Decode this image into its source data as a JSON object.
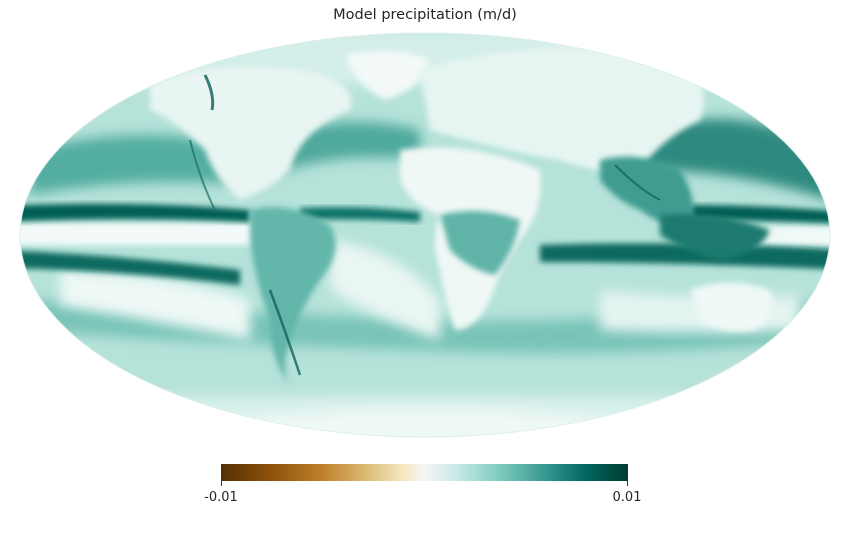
{
  "title": "Model precipitation (m/d)",
  "projection": "mollweide",
  "colormap": {
    "name": "BrBG",
    "colors": [
      "#543005",
      "#8c510a",
      "#bf812d",
      "#dfc27d",
      "#f6e8c3",
      "#f5f5f5",
      "#c7eae5",
      "#80cdc1",
      "#35978f",
      "#01665e",
      "#003c30"
    ]
  },
  "colorbar": {
    "min_label": "-0.01",
    "max_label": "0.01",
    "min": -0.01,
    "max": 0.01
  },
  "map": {
    "background_color": "#e6f4f1",
    "ocean_color": "#a6dcd2",
    "land_color": "#d9efea",
    "wet_color": "#01665e",
    "dry_color": "#f5f5f5"
  }
}
